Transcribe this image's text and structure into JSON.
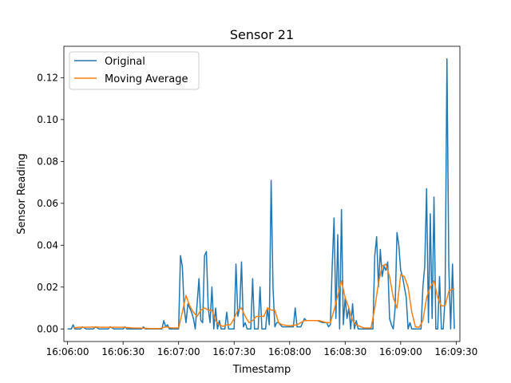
{
  "chart_data": {
    "type": "line",
    "title": "Sensor 21",
    "xlabel": "Timestamp",
    "ylabel": "Sensor Reading",
    "xlim": [
      "16:05:58",
      "16:09:32"
    ],
    "ylim": [
      -0.006,
      0.135
    ],
    "x_ticks": [
      "16:06:00",
      "16:06:30",
      "16:07:00",
      "16:07:30",
      "16:08:00",
      "16:08:30",
      "16:09:00",
      "16:09:30"
    ],
    "y_ticks": [
      "0.00",
      "0.02",
      "0.04",
      "0.06",
      "0.08",
      "0.10",
      "0.12"
    ],
    "legend_position": "upper-left",
    "grid": false,
    "series": [
      {
        "name": "Original",
        "color": "#1f77b4",
        "points": [
          [
            "16:06:00",
            0.0
          ],
          [
            "16:06:02",
            0.0
          ],
          [
            "16:06:03",
            0.002
          ],
          [
            "16:06:04",
            0.0
          ],
          [
            "16:06:07",
            0.0
          ],
          [
            "16:06:08",
            0.001
          ],
          [
            "16:06:10",
            0.0
          ],
          [
            "16:06:14",
            0.0
          ],
          [
            "16:06:15",
            0.001
          ],
          [
            "16:06:17",
            0.0
          ],
          [
            "16:06:22",
            0.0
          ],
          [
            "16:06:23",
            0.001
          ],
          [
            "16:06:25",
            0.0
          ],
          [
            "16:06:30",
            0.0
          ],
          [
            "16:06:31",
            0.001
          ],
          [
            "16:06:32",
            0.0
          ],
          [
            "16:06:40",
            0.0
          ],
          [
            "16:06:41",
            0.001
          ],
          [
            "16:06:42",
            0.0
          ],
          [
            "16:06:51",
            0.0
          ],
          [
            "16:06:52",
            0.004
          ],
          [
            "16:06:53",
            0.001
          ],
          [
            "16:06:54",
            0.002
          ],
          [
            "16:06:55",
            0.0
          ],
          [
            "16:07:00",
            0.0
          ],
          [
            "16:07:01",
            0.035
          ],
          [
            "16:07:02",
            0.03
          ],
          [
            "16:07:03",
            0.01
          ],
          [
            "16:07:04",
            0.003
          ],
          [
            "16:07:05",
            0.012
          ],
          [
            "16:07:06",
            0.01
          ],
          [
            "16:07:07",
            0.008
          ],
          [
            "16:07:08",
            0.005
          ],
          [
            "16:07:09",
            0.0
          ],
          [
            "16:07:10",
            0.012
          ],
          [
            "16:07:11",
            0.024
          ],
          [
            "16:07:12",
            0.004
          ],
          [
            "16:07:13",
            0.003
          ],
          [
            "16:07:14",
            0.035
          ],
          [
            "16:07:15",
            0.037
          ],
          [
            "16:07:16",
            0.01
          ],
          [
            "16:07:17",
            0.003
          ],
          [
            "16:07:18",
            0.02
          ],
          [
            "16:07:19",
            0.0
          ],
          [
            "16:07:20",
            0.01
          ],
          [
            "16:07:21",
            0.0
          ],
          [
            "16:07:22",
            0.004
          ],
          [
            "16:07:23",
            0.0
          ],
          [
            "16:07:25",
            0.0
          ],
          [
            "16:07:26",
            0.008
          ],
          [
            "16:07:27",
            0.0
          ],
          [
            "16:07:29",
            0.0
          ],
          [
            "16:07:30",
            0.0
          ],
          [
            "16:07:31",
            0.031
          ],
          [
            "16:07:32",
            0.006
          ],
          [
            "16:07:33",
            0.01
          ],
          [
            "16:07:34",
            0.032
          ],
          [
            "16:07:35",
            0.001
          ],
          [
            "16:07:36",
            0.003
          ],
          [
            "16:07:37",
            0.0
          ],
          [
            "16:07:39",
            0.0
          ],
          [
            "16:07:40",
            0.024
          ],
          [
            "16:07:41",
            0.0
          ],
          [
            "16:07:43",
            0.0
          ],
          [
            "16:07:44",
            0.02
          ],
          [
            "16:07:45",
            0.0
          ],
          [
            "16:07:47",
            0.0
          ],
          [
            "16:07:48",
            0.01
          ],
          [
            "16:07:49",
            0.002
          ],
          [
            "16:07:50",
            0.071
          ],
          [
            "16:07:51",
            0.02
          ],
          [
            "16:07:52",
            0.001
          ],
          [
            "16:07:53",
            0.003
          ],
          [
            "16:07:54",
            0.003
          ],
          [
            "16:07:55",
            0.002
          ],
          [
            "16:07:56",
            0.001
          ],
          [
            "16:07:57",
            0.001
          ],
          [
            "16:08:00",
            0.001
          ],
          [
            "16:08:02",
            0.001
          ],
          [
            "16:08:03",
            0.01
          ],
          [
            "16:08:04",
            0.001
          ],
          [
            "16:08:06",
            0.001
          ],
          [
            "16:08:07",
            0.003
          ],
          [
            "16:08:08",
            0.005
          ],
          [
            "16:08:09",
            0.004
          ],
          [
            "16:08:12",
            0.004
          ],
          [
            "16:08:15",
            0.004
          ],
          [
            "16:08:18",
            0.003
          ],
          [
            "16:08:20",
            0.003
          ],
          [
            "16:08:21",
            0.001
          ],
          [
            "16:08:22",
            0.002
          ],
          [
            "16:08:23",
            0.03
          ],
          [
            "16:08:24",
            0.053
          ],
          [
            "16:08:25",
            0.005
          ],
          [
            "16:08:26",
            0.045
          ],
          [
            "16:08:27",
            0.0
          ],
          [
            "16:08:28",
            0.057
          ],
          [
            "16:08:29",
            0.002
          ],
          [
            "16:08:30",
            0.015
          ],
          [
            "16:08:31",
            0.005
          ],
          [
            "16:08:32",
            0.01
          ],
          [
            "16:08:33",
            0.0
          ],
          [
            "16:08:34",
            0.012
          ],
          [
            "16:08:35",
            0.0
          ],
          [
            "16:08:36",
            0.004
          ],
          [
            "16:08:37",
            0.0
          ],
          [
            "16:08:44",
            0.0
          ],
          [
            "16:08:45",
            0.0
          ],
          [
            "16:08:46",
            0.035
          ],
          [
            "16:08:47",
            0.044
          ],
          [
            "16:08:48",
            0.02
          ],
          [
            "16:08:49",
            0.038
          ],
          [
            "16:08:50",
            0.025
          ],
          [
            "16:08:51",
            0.03
          ],
          [
            "16:08:52",
            0.028
          ],
          [
            "16:08:53",
            0.032
          ],
          [
            "16:08:54",
            0.005
          ],
          [
            "16:08:55",
            0.002
          ],
          [
            "16:08:56",
            0.0
          ],
          [
            "16:08:57",
            0.01
          ],
          [
            "16:08:58",
            0.046
          ],
          [
            "16:08:59",
            0.04
          ],
          [
            "16:09:00",
            0.028
          ],
          [
            "16:09:01",
            0.025
          ],
          [
            "16:09:02",
            0.02
          ],
          [
            "16:09:03",
            0.015
          ],
          [
            "16:09:04",
            0.0
          ],
          [
            "16:09:05",
            0.003
          ],
          [
            "16:09:06",
            0.0
          ],
          [
            "16:09:08",
            0.0
          ],
          [
            "16:09:09",
            0.0
          ],
          [
            "16:09:10",
            0.0
          ],
          [
            "16:09:11",
            0.0
          ],
          [
            "16:09:12",
            0.02
          ],
          [
            "16:09:13",
            0.03
          ],
          [
            "16:09:14",
            0.067
          ],
          [
            "16:09:15",
            0.003
          ],
          [
            "16:09:16",
            0.055
          ],
          [
            "16:09:17",
            0.005
          ],
          [
            "16:09:18",
            0.063
          ],
          [
            "16:09:19",
            0.0
          ],
          [
            "16:09:20",
            0.0
          ],
          [
            "16:09:21",
            0.025
          ],
          [
            "16:09:22",
            0.0
          ],
          [
            "16:09:23",
            0.0
          ],
          [
            "16:09:24",
            0.015
          ],
          [
            "16:09:25",
            0.129
          ],
          [
            "16:09:26",
            0.03
          ],
          [
            "16:09:27",
            0.0
          ],
          [
            "16:09:28",
            0.031
          ],
          [
            "16:09:29",
            0.0
          ]
        ]
      },
      {
        "name": "Moving Average",
        "color": "#ff7f0e",
        "points": [
          [
            "16:06:03",
            0.0005
          ],
          [
            "16:06:06",
            0.0008
          ],
          [
            "16:06:10",
            0.0008
          ],
          [
            "16:06:15",
            0.0009
          ],
          [
            "16:06:20",
            0.0008
          ],
          [
            "16:06:25",
            0.0008
          ],
          [
            "16:06:30",
            0.0008
          ],
          [
            "16:06:35",
            0.0005
          ],
          [
            "16:06:40",
            0.0004
          ],
          [
            "16:06:45",
            0.0002
          ],
          [
            "16:06:50",
            0.0002
          ],
          [
            "16:06:53",
            0.001
          ],
          [
            "16:06:56",
            0.0005
          ],
          [
            "16:07:00",
            0.0005
          ],
          [
            "16:07:02",
            0.008
          ],
          [
            "16:07:04",
            0.016
          ],
          [
            "16:07:06",
            0.011
          ],
          [
            "16:07:08",
            0.008
          ],
          [
            "16:07:10",
            0.006
          ],
          [
            "16:07:12",
            0.009
          ],
          [
            "16:07:14",
            0.01
          ],
          [
            "16:07:16",
            0.009
          ],
          [
            "16:07:18",
            0.009
          ],
          [
            "16:07:20",
            0.004
          ],
          [
            "16:07:22",
            0.002
          ],
          [
            "16:07:24",
            0.0012
          ],
          [
            "16:07:26",
            0.002
          ],
          [
            "16:07:28",
            0.002
          ],
          [
            "16:07:30",
            0.005
          ],
          [
            "16:07:32",
            0.009
          ],
          [
            "16:07:34",
            0.01
          ],
          [
            "16:07:36",
            0.006
          ],
          [
            "16:07:38",
            0.003
          ],
          [
            "16:07:40",
            0.004
          ],
          [
            "16:07:42",
            0.006
          ],
          [
            "16:07:44",
            0.006
          ],
          [
            "16:07:46",
            0.006
          ],
          [
            "16:07:48",
            0.01
          ],
          [
            "16:07:50",
            0.009
          ],
          [
            "16:07:52",
            0.009
          ],
          [
            "16:07:54",
            0.003
          ],
          [
            "16:07:56",
            0.002
          ],
          [
            "16:08:00",
            0.0015
          ],
          [
            "16:08:04",
            0.002
          ],
          [
            "16:08:08",
            0.004
          ],
          [
            "16:08:12",
            0.004
          ],
          [
            "16:08:16",
            0.004
          ],
          [
            "16:08:20",
            0.003
          ],
          [
            "16:08:22",
            0.003
          ],
          [
            "16:08:24",
            0.009
          ],
          [
            "16:08:26",
            0.016
          ],
          [
            "16:08:28",
            0.023
          ],
          [
            "16:08:30",
            0.015
          ],
          [
            "16:08:32",
            0.01
          ],
          [
            "16:08:34",
            0.004
          ],
          [
            "16:08:36",
            0.002
          ],
          [
            "16:08:40",
            0.0005
          ],
          [
            "16:08:44",
            0.0005
          ],
          [
            "16:08:46",
            0.01
          ],
          [
            "16:08:48",
            0.022
          ],
          [
            "16:08:50",
            0.03
          ],
          [
            "16:08:52",
            0.031
          ],
          [
            "16:08:54",
            0.025
          ],
          [
            "16:08:56",
            0.015
          ],
          [
            "16:08:58",
            0.01
          ],
          [
            "16:09:00",
            0.026
          ],
          [
            "16:09:02",
            0.025
          ],
          [
            "16:09:04",
            0.02
          ],
          [
            "16:09:06",
            0.008
          ],
          [
            "16:09:08",
            0.001
          ],
          [
            "16:09:10",
            0.0008
          ],
          [
            "16:09:12",
            0.004
          ],
          [
            "16:09:14",
            0.015
          ],
          [
            "16:09:16",
            0.02
          ],
          [
            "16:09:18",
            0.023
          ],
          [
            "16:09:20",
            0.015
          ],
          [
            "16:09:22",
            0.011
          ],
          [
            "16:09:24",
            0.011
          ],
          [
            "16:09:26",
            0.018
          ],
          [
            "16:09:28",
            0.019
          ],
          [
            "16:09:29",
            0.019
          ]
        ]
      }
    ]
  }
}
